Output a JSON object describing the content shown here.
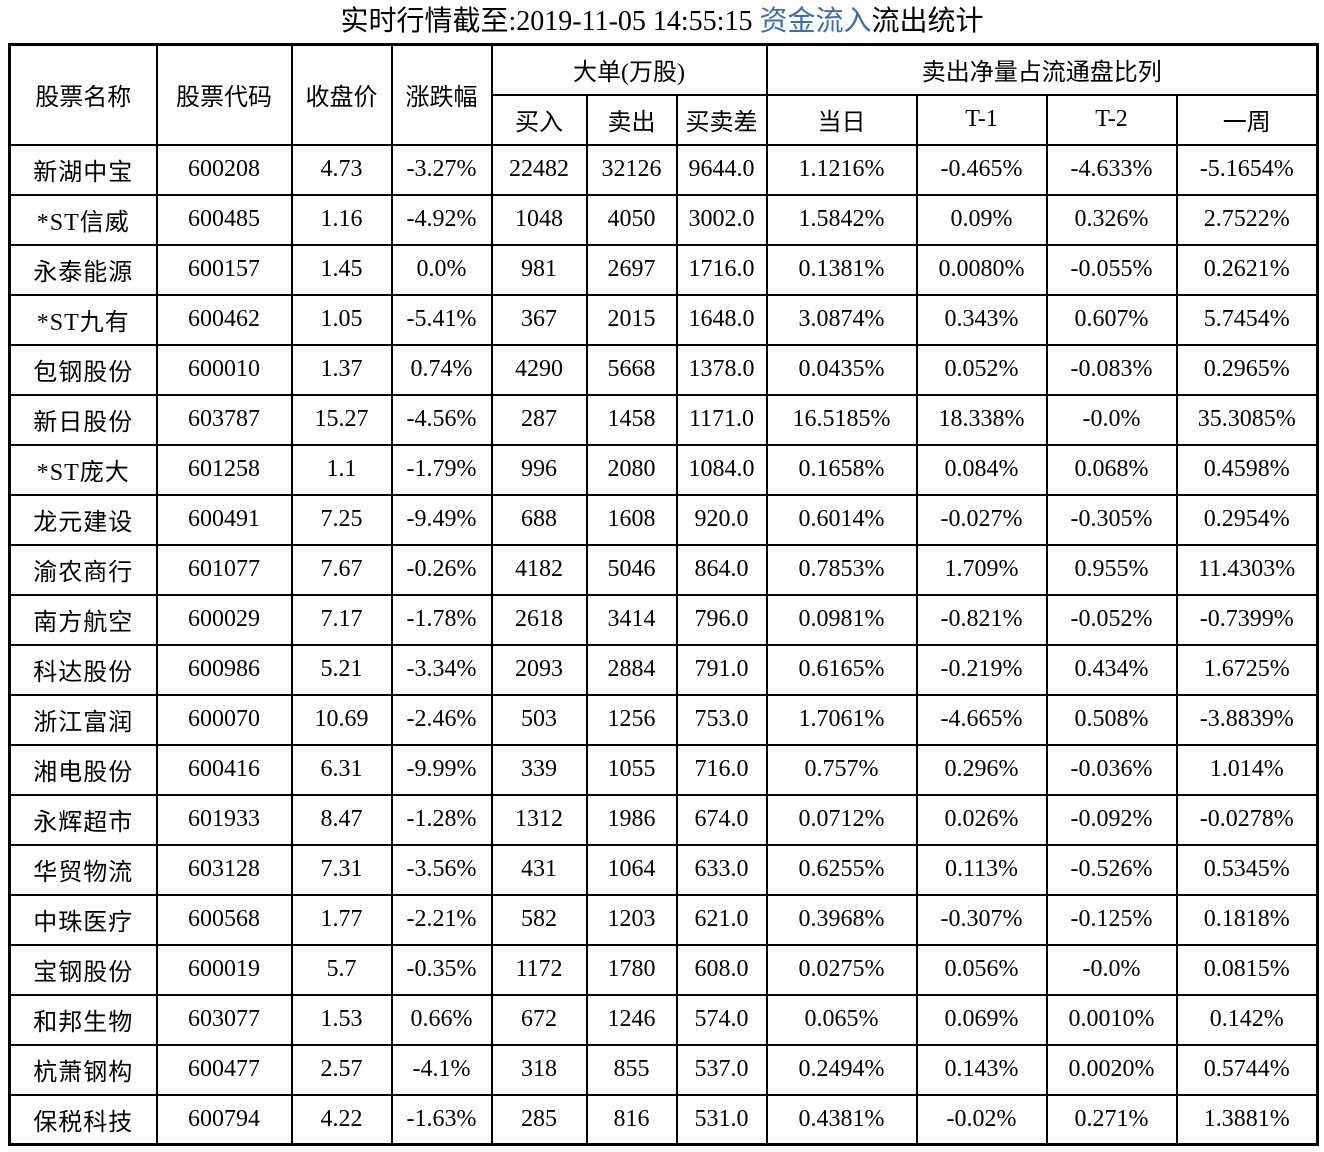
{
  "title": {
    "prefix": "实时行情截至:2019-11-05 14:55:15 ",
    "highlight": "资金流入",
    "suffix": "流出统计"
  },
  "colors": {
    "name_blue": "#1F4E79",
    "code_blue": "#2A548C",
    "header_blue": "#2E74B5",
    "title_blue": "#3A6FAD",
    "border": "#000000",
    "text": "#000000",
    "background": "#FFFFFF"
  },
  "table": {
    "headers": {
      "name": "股票名称",
      "code": "股票代码",
      "close": "收盘价",
      "change": "涨跌幅",
      "big_order_group": "大单(万股)",
      "buy": "买入",
      "sell": "卖出",
      "diff": "买卖差",
      "net_sell_group": "卖出净量占流通盘比列",
      "day": "当日",
      "t1": "T-1",
      "t2": "T-2",
      "week": "一周"
    },
    "rows": [
      {
        "name": "新湖中宝",
        "code": "600208",
        "close": "4.73",
        "change": "-3.27%",
        "buy": "22482",
        "sell": "32126",
        "diff": "9644.0",
        "day": "1.1216%",
        "t1": "-0.465%",
        "t2": "-4.633%",
        "week": "-5.1654%"
      },
      {
        "name": "*ST信威",
        "code": "600485",
        "close": "1.16",
        "change": "-4.92%",
        "buy": "1048",
        "sell": "4050",
        "diff": "3002.0",
        "day": "1.5842%",
        "t1": "0.09%",
        "t2": "0.326%",
        "week": "2.7522%"
      },
      {
        "name": "永泰能源",
        "code": "600157",
        "close": "1.45",
        "change": "0.0%",
        "buy": "981",
        "sell": "2697",
        "diff": "1716.0",
        "day": "0.1381%",
        "t1": "0.0080%",
        "t2": "-0.055%",
        "week": "0.2621%"
      },
      {
        "name": "*ST九有",
        "code": "600462",
        "close": "1.05",
        "change": "-5.41%",
        "buy": "367",
        "sell": "2015",
        "diff": "1648.0",
        "day": "3.0874%",
        "t1": "0.343%",
        "t2": "0.607%",
        "week": "5.7454%"
      },
      {
        "name": "包钢股份",
        "code": "600010",
        "close": "1.37",
        "change": "0.74%",
        "buy": "4290",
        "sell": "5668",
        "diff": "1378.0",
        "day": "0.0435%",
        "t1": "0.052%",
        "t2": "-0.083%",
        "week": "0.2965%"
      },
      {
        "name": "新日股份",
        "code": "603787",
        "close": "15.27",
        "change": "-4.56%",
        "buy": "287",
        "sell": "1458",
        "diff": "1171.0",
        "day": "16.5185%",
        "t1": "18.338%",
        "t2": "-0.0%",
        "week": "35.3085%"
      },
      {
        "name": "*ST庞大",
        "code": "601258",
        "close": "1.1",
        "change": "-1.79%",
        "buy": "996",
        "sell": "2080",
        "diff": "1084.0",
        "day": "0.1658%",
        "t1": "0.084%",
        "t2": "0.068%",
        "week": "0.4598%"
      },
      {
        "name": "龙元建设",
        "code": "600491",
        "close": "7.25",
        "change": "-9.49%",
        "buy": "688",
        "sell": "1608",
        "diff": "920.0",
        "day": "0.6014%",
        "t1": "-0.027%",
        "t2": "-0.305%",
        "week": "0.2954%"
      },
      {
        "name": "渝农商行",
        "code": "601077",
        "close": "7.67",
        "change": "-0.26%",
        "buy": "4182",
        "sell": "5046",
        "diff": "864.0",
        "day": "0.7853%",
        "t1": "1.709%",
        "t2": "0.955%",
        "week": "11.4303%"
      },
      {
        "name": "南方航空",
        "code": "600029",
        "close": "7.17",
        "change": "-1.78%",
        "buy": "2618",
        "sell": "3414",
        "diff": "796.0",
        "day": "0.0981%",
        "t1": "-0.821%",
        "t2": "-0.052%",
        "week": "-0.7399%"
      },
      {
        "name": "科达股份",
        "code": "600986",
        "close": "5.21",
        "change": "-3.34%",
        "buy": "2093",
        "sell": "2884",
        "diff": "791.0",
        "day": "0.6165%",
        "t1": "-0.219%",
        "t2": "0.434%",
        "week": "1.6725%"
      },
      {
        "name": "浙江富润",
        "code": "600070",
        "close": "10.69",
        "change": "-2.46%",
        "buy": "503",
        "sell": "1256",
        "diff": "753.0",
        "day": "1.7061%",
        "t1": "-4.665%",
        "t2": "0.508%",
        "week": "-3.8839%"
      },
      {
        "name": "湘电股份",
        "code": "600416",
        "close": "6.31",
        "change": "-9.99%",
        "buy": "339",
        "sell": "1055",
        "diff": "716.0",
        "day": "0.757%",
        "t1": "0.296%",
        "t2": "-0.036%",
        "week": "1.014%"
      },
      {
        "name": "永辉超市",
        "code": "601933",
        "close": "8.47",
        "change": "-1.28%",
        "buy": "1312",
        "sell": "1986",
        "diff": "674.0",
        "day": "0.0712%",
        "t1": "0.026%",
        "t2": "-0.092%",
        "week": "-0.0278%"
      },
      {
        "name": "华贸物流",
        "code": "603128",
        "close": "7.31",
        "change": "-3.56%",
        "buy": "431",
        "sell": "1064",
        "diff": "633.0",
        "day": "0.6255%",
        "t1": "0.113%",
        "t2": "-0.526%",
        "week": "0.5345%"
      },
      {
        "name": "中珠医疗",
        "code": "600568",
        "close": "1.77",
        "change": "-2.21%",
        "buy": "582",
        "sell": "1203",
        "diff": "621.0",
        "day": "0.3968%",
        "t1": "-0.307%",
        "t2": "-0.125%",
        "week": "0.1818%"
      },
      {
        "name": "宝钢股份",
        "code": "600019",
        "close": "5.7",
        "change": "-0.35%",
        "buy": "1172",
        "sell": "1780",
        "diff": "608.0",
        "day": "0.0275%",
        "t1": "0.056%",
        "t2": "-0.0%",
        "week": "0.0815%"
      },
      {
        "name": "和邦生物",
        "code": "603077",
        "close": "1.53",
        "change": "0.66%",
        "buy": "672",
        "sell": "1246",
        "diff": "574.0",
        "day": "0.065%",
        "t1": "0.069%",
        "t2": "0.0010%",
        "week": "0.142%"
      },
      {
        "name": "杭萧钢构",
        "code": "600477",
        "close": "2.57",
        "change": "-4.1%",
        "buy": "318",
        "sell": "855",
        "diff": "537.0",
        "day": "0.2494%",
        "t1": "0.143%",
        "t2": "0.0020%",
        "week": "0.5744%"
      },
      {
        "name": "保税科技",
        "code": "600794",
        "close": "4.22",
        "change": "-1.63%",
        "buy": "285",
        "sell": "816",
        "diff": "531.0",
        "day": "0.4381%",
        "t1": "-0.02%",
        "t2": "0.271%",
        "week": "1.3881%"
      }
    ]
  }
}
